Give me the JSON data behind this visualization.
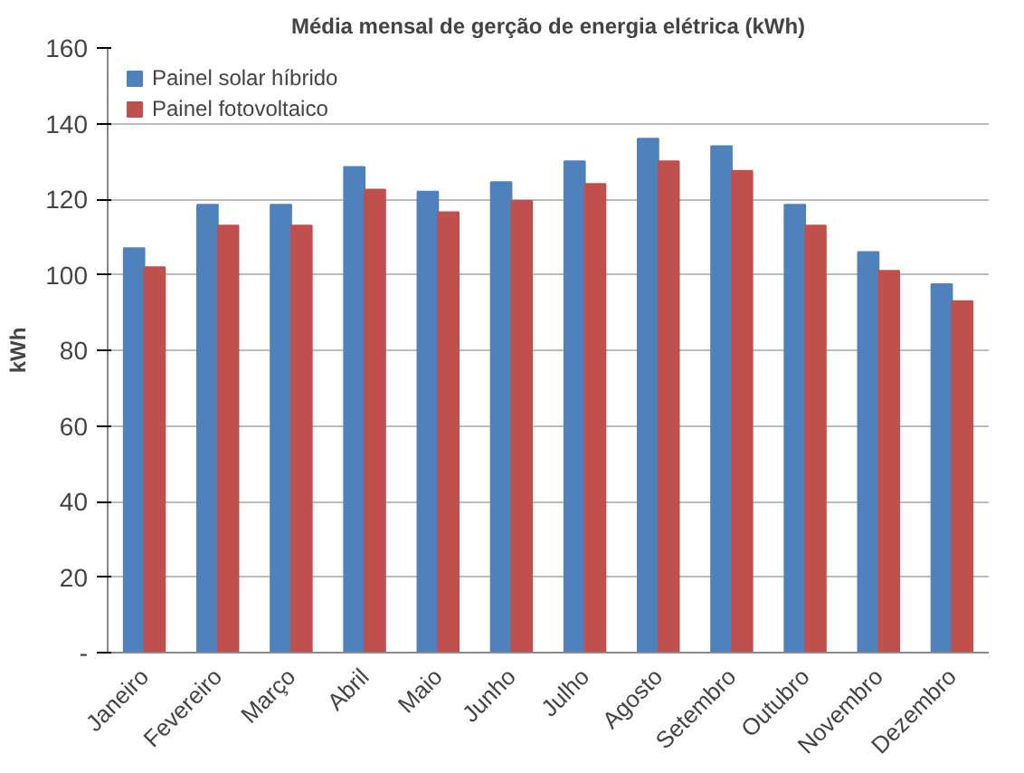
{
  "chart_data": {
    "type": "bar",
    "title": "Média mensal de gerção de energia elétrica (kWh)",
    "ylabel": "kWh",
    "categories": [
      "Janeiro",
      "Fevereiro",
      "Março",
      "Abril",
      "Maio",
      "Junho",
      "Julho",
      "Agosto",
      "Setembro",
      "Outubro",
      "Novembro",
      "Dezembro"
    ],
    "series": [
      {
        "name": "Painel solar híbrido",
        "color": "#4f81bd",
        "values": [
          107,
          118.5,
          118.5,
          128.5,
          122,
          124.5,
          130,
          136,
          134,
          118.5,
          106,
          97.5
        ]
      },
      {
        "name": "Painel fotovoltaico",
        "color": "#c0504d",
        "values": [
          102,
          113,
          113,
          122.5,
          116.5,
          119.5,
          124,
          130,
          127.5,
          113,
          101,
          93
        ]
      }
    ],
    "ylim": [
      0,
      160
    ],
    "yticks": [
      {
        "value": 0,
        "label": "-"
      },
      20,
      40,
      60,
      80,
      100,
      120,
      140,
      160
    ],
    "grid": "y",
    "legend": "top left"
  }
}
